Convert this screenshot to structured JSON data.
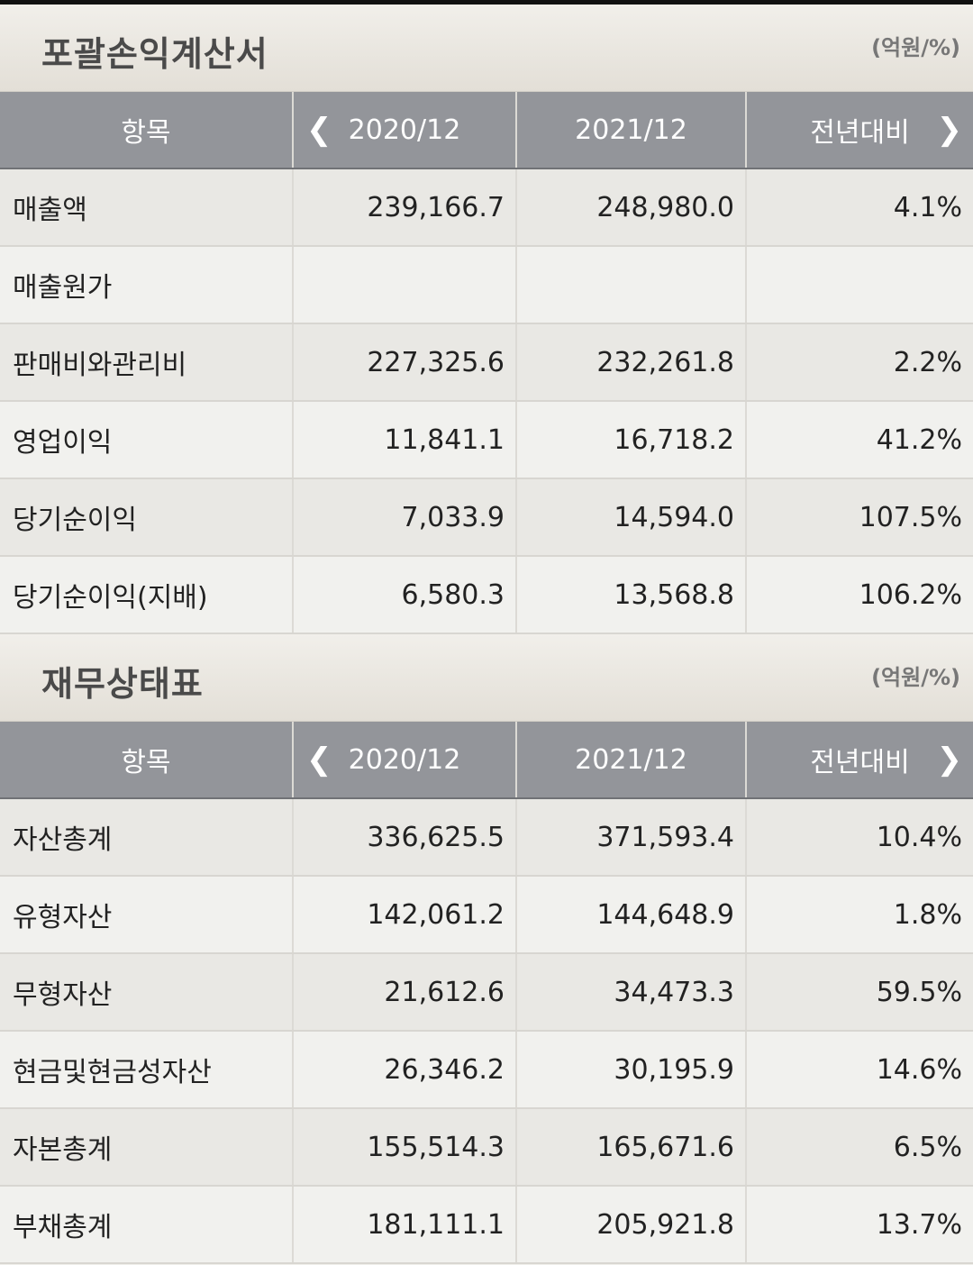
{
  "income": {
    "title": "포괄손익계산서",
    "unit": "(억원/%)",
    "headers": {
      "item": "항목",
      "prev_icon": "chevron-left-icon",
      "col1": "2020/12",
      "col2": "2021/12",
      "col3": "전년대비",
      "next_icon": "chevron-right-icon"
    },
    "rows": [
      {
        "label": "매출액",
        "v1": "239,166.7",
        "v2": "248,980.0",
        "yoy": "4.1%"
      },
      {
        "label": "매출원가",
        "v1": "",
        "v2": "",
        "yoy": ""
      },
      {
        "label": "판매비와관리비",
        "v1": "227,325.6",
        "v2": "232,261.8",
        "yoy": "2.2%"
      },
      {
        "label": "영업이익",
        "v1": "11,841.1",
        "v2": "16,718.2",
        "yoy": "41.2%"
      },
      {
        "label": "당기순이익",
        "v1": "7,033.9",
        "v2": "14,594.0",
        "yoy": "107.5%"
      },
      {
        "label": "당기순이익(지배)",
        "v1": "6,580.3",
        "v2": "13,568.8",
        "yoy": "106.2%"
      }
    ]
  },
  "balance": {
    "title": "재무상태표",
    "unit": "(억원/%)",
    "headers": {
      "item": "항목",
      "prev_icon": "chevron-left-icon",
      "col1": "2020/12",
      "col2": "2021/12",
      "col3": "전년대비",
      "next_icon": "chevron-right-icon"
    },
    "rows": [
      {
        "label": "자산총계",
        "v1": "336,625.5",
        "v2": "371,593.4",
        "yoy": "10.4%"
      },
      {
        "label": "유형자산",
        "v1": "142,061.2",
        "v2": "144,648.9",
        "yoy": "1.8%"
      },
      {
        "label": "무형자산",
        "v1": "21,612.6",
        "v2": "34,473.3",
        "yoy": "59.5%"
      },
      {
        "label": "현금및현금성자산",
        "v1": "26,346.2",
        "v2": "30,195.9",
        "yoy": "14.6%"
      },
      {
        "label": "자본총계",
        "v1": "155,514.3",
        "v2": "165,671.6",
        "yoy": "6.5%"
      },
      {
        "label": "부채총계",
        "v1": "181,111.1",
        "v2": "205,921.8",
        "yoy": "13.7%"
      }
    ]
  }
}
